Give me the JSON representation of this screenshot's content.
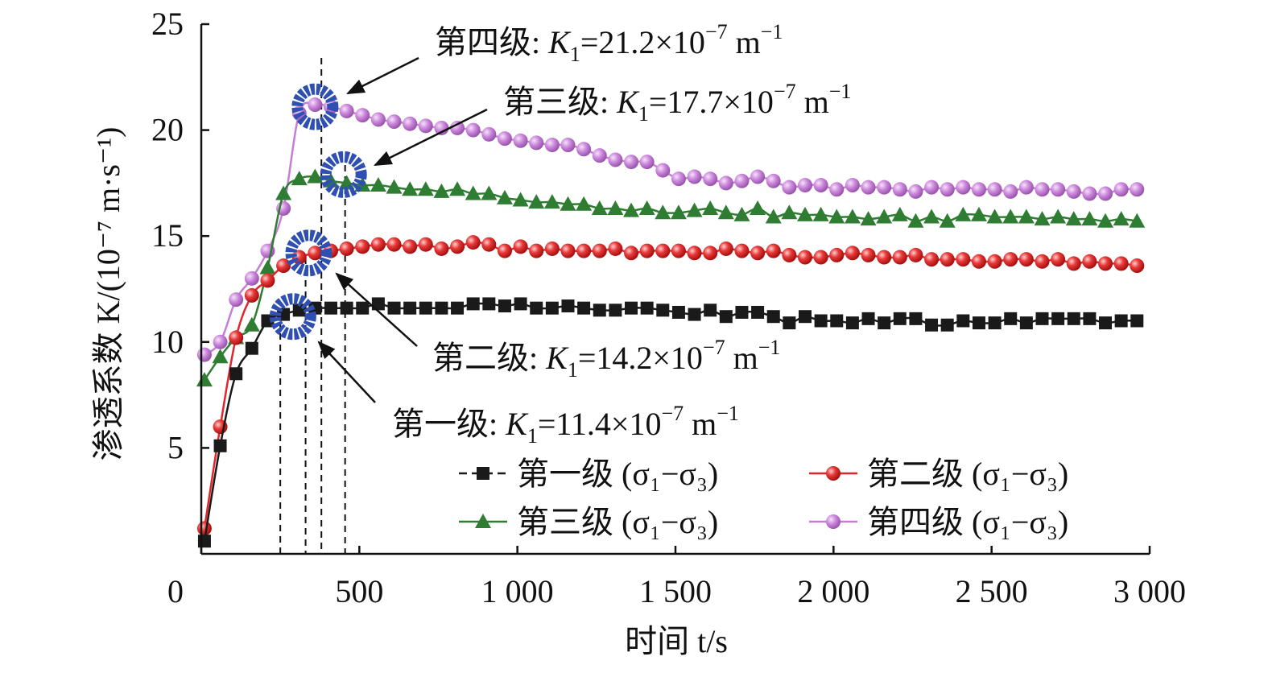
{
  "chart_data": {
    "type": "line",
    "xlabel": "时间 t/s",
    "ylabel": "渗透系数 K/(10⁻⁷ m·s⁻¹)",
    "xlim": [
      0,
      3000
    ],
    "ylim": [
      0,
      25
    ],
    "x_ticks": [
      {
        "value": 0,
        "label": "0"
      },
      {
        "value": 500,
        "label": "500"
      },
      {
        "value": 1000,
        "label": "1 000"
      },
      {
        "value": 1500,
        "label": "1 500"
      },
      {
        "value": 2000,
        "label": "2 000"
      },
      {
        "value": 2500,
        "label": "2 500"
      },
      {
        "value": 3000,
        "label": "3 000"
      }
    ],
    "y_ticks": [
      {
        "value": 5,
        "label": "5"
      },
      {
        "value": 10,
        "label": "10"
      },
      {
        "value": 15,
        "label": "15"
      },
      {
        "value": 20,
        "label": "20"
      },
      {
        "value": 25,
        "label": "25"
      }
    ],
    "grid": false,
    "legend_position": "bottom-right",
    "series": [
      {
        "name": "第一级 (σ₁−σ₃)",
        "color": "#1a1a1a",
        "marker": "square",
        "x": [
          10,
          60,
          110,
          160,
          210,
          260,
          310,
          360,
          410,
          460,
          510,
          560,
          610,
          660,
          710,
          760,
          810,
          860,
          910,
          960,
          1010,
          1060,
          1110,
          1160,
          1210,
          1260,
          1310,
          1360,
          1410,
          1460,
          1510,
          1560,
          1610,
          1660,
          1710,
          1760,
          1810,
          1860,
          1910,
          1960,
          2010,
          2060,
          2110,
          2160,
          2210,
          2260,
          2310,
          2360,
          2410,
          2460,
          2510,
          2560,
          2610,
          2660,
          2710,
          2760,
          2810,
          2860,
          2910,
          2960
        ],
        "values": [
          0.6,
          5.1,
          8.5,
          9.7,
          11.0,
          11.3,
          11.5,
          11.6,
          11.6,
          11.6,
          11.6,
          11.8,
          11.6,
          11.6,
          11.6,
          11.6,
          11.6,
          11.8,
          11.8,
          11.7,
          11.8,
          11.6,
          11.6,
          11.7,
          11.6,
          11.5,
          11.5,
          11.6,
          11.6,
          11.5,
          11.4,
          11.3,
          11.5,
          11.2,
          11.4,
          11.4,
          11.2,
          10.9,
          11.2,
          11.0,
          11.0,
          10.9,
          11.1,
          10.9,
          11.1,
          11.1,
          10.8,
          10.8,
          11.0,
          10.9,
          10.9,
          11.1,
          10.9,
          11.1,
          11.1,
          11.1,
          11.1,
          10.9,
          11.0,
          11.0
        ]
      },
      {
        "name": "第二级 (σ₁−σ₃)",
        "color": "#e0262b",
        "marker": "circle",
        "x": [
          10,
          60,
          110,
          160,
          210,
          260,
          310,
          360,
          410,
          460,
          510,
          560,
          610,
          660,
          710,
          760,
          810,
          860,
          910,
          960,
          1010,
          1060,
          1110,
          1160,
          1210,
          1260,
          1310,
          1360,
          1410,
          1460,
          1510,
          1560,
          1610,
          1660,
          1710,
          1760,
          1810,
          1860,
          1910,
          1960,
          2010,
          2060,
          2110,
          2160,
          2210,
          2260,
          2310,
          2360,
          2410,
          2460,
          2510,
          2560,
          2610,
          2660,
          2710,
          2760,
          2810,
          2860,
          2910,
          2960
        ],
        "values": [
          1.2,
          6.0,
          10.2,
          12.2,
          12.9,
          13.6,
          14.0,
          14.2,
          14.3,
          14.4,
          14.5,
          14.6,
          14.6,
          14.5,
          14.6,
          14.4,
          14.5,
          14.7,
          14.6,
          14.3,
          14.5,
          14.3,
          14.4,
          14.3,
          14.3,
          14.3,
          14.4,
          14.2,
          14.3,
          14.3,
          14.3,
          14.2,
          14.2,
          14.4,
          14.3,
          14.2,
          14.3,
          14.1,
          14.0,
          14.0,
          14.1,
          14.2,
          14.1,
          14.0,
          14.0,
          14.1,
          13.9,
          13.9,
          13.9,
          13.8,
          13.8,
          13.9,
          13.9,
          13.8,
          13.9,
          13.7,
          13.8,
          13.7,
          13.7,
          13.6
        ]
      },
      {
        "name": "第三级 (σ₁−σ₃)",
        "color": "#2e7d32",
        "marker": "triangle",
        "x": [
          10,
          60,
          110,
          160,
          210,
          260,
          310,
          360,
          410,
          460,
          510,
          560,
          610,
          660,
          710,
          760,
          810,
          860,
          910,
          960,
          1010,
          1060,
          1110,
          1160,
          1210,
          1260,
          1310,
          1360,
          1410,
          1460,
          1510,
          1560,
          1610,
          1660,
          1710,
          1760,
          1810,
          1860,
          1910,
          1960,
          2010,
          2060,
          2110,
          2160,
          2210,
          2260,
          2310,
          2360,
          2410,
          2460,
          2510,
          2560,
          2610,
          2660,
          2710,
          2760,
          2810,
          2860,
          2910,
          2960
        ],
        "values": [
          8.2,
          9.3,
          10.2,
          10.8,
          13.5,
          17.0,
          17.7,
          17.8,
          17.6,
          17.5,
          17.4,
          17.4,
          17.3,
          17.2,
          17.2,
          17.1,
          17.2,
          17.0,
          17.0,
          16.8,
          16.7,
          16.6,
          16.6,
          16.5,
          16.5,
          16.3,
          16.3,
          16.2,
          16.3,
          16.1,
          16.1,
          16.2,
          16.3,
          16.1,
          16.0,
          16.3,
          15.9,
          16.1,
          16.0,
          16.0,
          15.9,
          15.9,
          15.8,
          15.9,
          16.0,
          15.7,
          15.9,
          15.7,
          16.0,
          16.0,
          15.9,
          15.9,
          15.9,
          15.8,
          15.9,
          15.8,
          15.8,
          15.7,
          15.8,
          15.7
        ]
      },
      {
        "name": "第四级 (σ₁−σ₃)",
        "color": "#c77dd6",
        "marker": "circle",
        "x": [
          10,
          60,
          110,
          160,
          210,
          260,
          310,
          360,
          410,
          460,
          510,
          560,
          610,
          660,
          710,
          760,
          810,
          860,
          910,
          960,
          1010,
          1060,
          1110,
          1160,
          1210,
          1260,
          1310,
          1360,
          1410,
          1460,
          1510,
          1560,
          1610,
          1660,
          1710,
          1760,
          1810,
          1860,
          1910,
          1960,
          2010,
          2060,
          2110,
          2160,
          2210,
          2260,
          2310,
          2360,
          2410,
          2460,
          2510,
          2560,
          2610,
          2660,
          2710,
          2760,
          2810,
          2860,
          2910,
          2960
        ],
        "values": [
          9.4,
          10.0,
          12.0,
          13.0,
          14.3,
          16.3,
          20.8,
          21.2,
          21.1,
          20.9,
          20.7,
          20.5,
          20.4,
          20.3,
          20.2,
          20.1,
          20.1,
          20.0,
          19.8,
          19.6,
          19.5,
          19.4,
          19.3,
          19.3,
          19.1,
          18.8,
          18.6,
          18.5,
          18.5,
          18.1,
          17.7,
          17.8,
          17.7,
          17.5,
          17.6,
          17.8,
          17.6,
          17.3,
          17.4,
          17.4,
          17.2,
          17.4,
          17.3,
          17.3,
          17.2,
          17.1,
          17.3,
          17.2,
          17.3,
          17.2,
          17.2,
          17.1,
          17.3,
          17.2,
          17.2,
          17.1,
          17.0,
          17.0,
          17.2,
          17.2
        ]
      }
    ],
    "markers_blue_rings": [
      {
        "x": 290,
        "y": 11.2
      },
      {
        "x": 340,
        "y": 14.2
      },
      {
        "x": 360,
        "y": 21.1
      },
      {
        "x": 450,
        "y": 17.9
      }
    ],
    "dashed_lines_x": [
      250,
      330,
      380,
      455
    ],
    "annotations": [
      {
        "level": "第四级",
        "prefix": "第四级: ",
        "k": "K",
        "sub": "1",
        "mid": "=21.2×10",
        "sup": "−7",
        "unit": " m",
        "unit_sup": "−1"
      },
      {
        "level": "第三级",
        "prefix": "第三级: ",
        "k": "K",
        "sub": "1",
        "mid": "=17.7×10",
        "sup": "−7",
        "unit": " m",
        "unit_sup": "−1"
      },
      {
        "level": "第二级",
        "prefix": "第二级: ",
        "k": "K",
        "sub": "1",
        "mid": "=14.2×10",
        "sup": "−7",
        "unit": " m",
        "unit_sup": "−1"
      },
      {
        "level": "第一级",
        "prefix": "第一级: ",
        "k": "K",
        "sub": "1",
        "mid": "=11.4×10",
        "sup": "−7",
        "unit": " m",
        "unit_sup": "−1"
      }
    ],
    "ring_color": "#2f4fb3"
  }
}
